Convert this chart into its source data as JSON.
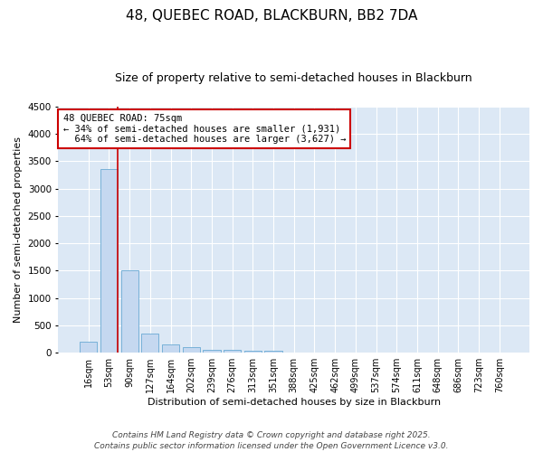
{
  "title": "48, QUEBEC ROAD, BLACKBURN, BB2 7DA",
  "subtitle": "Size of property relative to semi-detached houses in Blackburn",
  "xlabel": "Distribution of semi-detached houses by size in Blackburn",
  "ylabel": "Number of semi-detached properties",
  "categories": [
    "16sqm",
    "53sqm",
    "90sqm",
    "127sqm",
    "164sqm",
    "202sqm",
    "239sqm",
    "276sqm",
    "313sqm",
    "351sqm",
    "388sqm",
    "425sqm",
    "462sqm",
    "499sqm",
    "537sqm",
    "574sqm",
    "611sqm",
    "648sqm",
    "686sqm",
    "723sqm",
    "760sqm"
  ],
  "values": [
    200,
    3350,
    1500,
    350,
    150,
    100,
    50,
    50,
    30,
    30,
    0,
    0,
    0,
    0,
    0,
    0,
    0,
    0,
    0,
    0,
    0
  ],
  "bar_color": "#c5d8f0",
  "bar_edge_color": "#6aaad4",
  "vline_pos": 1.43,
  "vline_color": "#cc0000",
  "annotation_text": "48 QUEBEC ROAD: 75sqm\n← 34% of semi-detached houses are smaller (1,931)\n  64% of semi-detached houses are larger (3,627) →",
  "annotation_box_facecolor": "#ffffff",
  "annotation_box_edgecolor": "#cc0000",
  "ylim_max": 4500,
  "yticks": [
    0,
    500,
    1000,
    1500,
    2000,
    2500,
    3000,
    3500,
    4000,
    4500
  ],
  "background_color": "#dce8f5",
  "grid_color": "#ffffff",
  "footer_line1": "Contains HM Land Registry data © Crown copyright and database right 2025.",
  "footer_line2": "Contains public sector information licensed under the Open Government Licence v3.0.",
  "title_fontsize": 11,
  "subtitle_fontsize": 9,
  "tick_fontsize": 7,
  "ylabel_fontsize": 8,
  "xlabel_fontsize": 8,
  "annotation_fontsize": 7.5,
  "footer_fontsize": 6.5
}
